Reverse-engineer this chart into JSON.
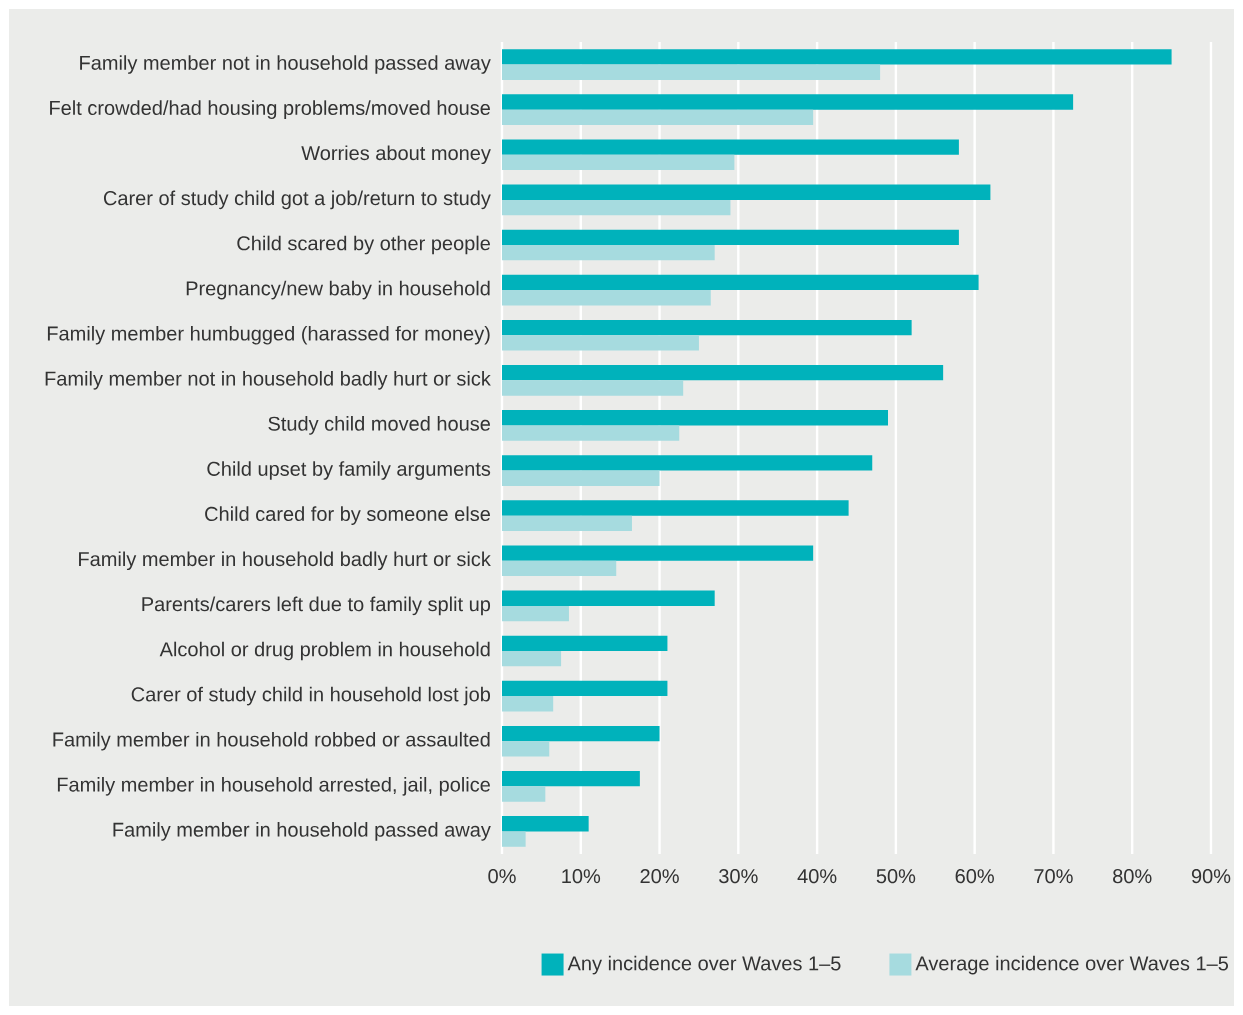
{
  "chart_data": {
    "type": "bar",
    "orientation": "horizontal",
    "categories": [
      "Family member not in household passed away",
      "Felt crowded/had housing problems/moved house",
      "Worries about money",
      "Carer of study child got a job/return to study",
      "Child scared by other people",
      "Pregnancy/new baby in household",
      "Family member humbugged (harassed for money)",
      "Family member not in household badly hurt or sick",
      "Study child moved house",
      "Child upset by family arguments",
      "Child cared for by someone else",
      "Family member in household badly hurt or sick",
      "Parents/carers left due to family split up",
      "Alcohol or drug problem in household",
      "Carer of study child in household lost job",
      "Family member in household robbed or assaulted",
      "Family member in household arrested, jail, police",
      "Family member in household passed away"
    ],
    "series": [
      {
        "name": "Any incidence over Waves 1–5",
        "color": "#00b2bb",
        "values": [
          85,
          72.5,
          58,
          62,
          58,
          60.5,
          52,
          56,
          49,
          47,
          44,
          39.5,
          27,
          21,
          21,
          20,
          17.5,
          11
        ]
      },
      {
        "name": "Average incidence over Waves 1–5",
        "color": "#a6dbdf",
        "values": [
          48,
          39.5,
          29.5,
          29,
          27,
          26.5,
          25,
          23,
          22.5,
          20,
          16.5,
          14.5,
          8.5,
          7.5,
          6.5,
          6,
          5.5,
          3
        ]
      }
    ],
    "xlim": [
      0,
      90
    ],
    "xticks": [
      {
        "value": 0,
        "label": "0%"
      },
      {
        "value": 10,
        "label": "10%"
      },
      {
        "value": 20,
        "label": "20%"
      },
      {
        "value": 30,
        "label": "30%"
      },
      {
        "value": 40,
        "label": "40%"
      },
      {
        "value": 50,
        "label": "50%"
      },
      {
        "value": 60,
        "label": "60%"
      },
      {
        "value": 70,
        "label": "70%"
      },
      {
        "value": 80,
        "label": "80%"
      },
      {
        "value": 90,
        "label": "90%"
      }
    ],
    "grid": "x",
    "legend": "bottom"
  }
}
